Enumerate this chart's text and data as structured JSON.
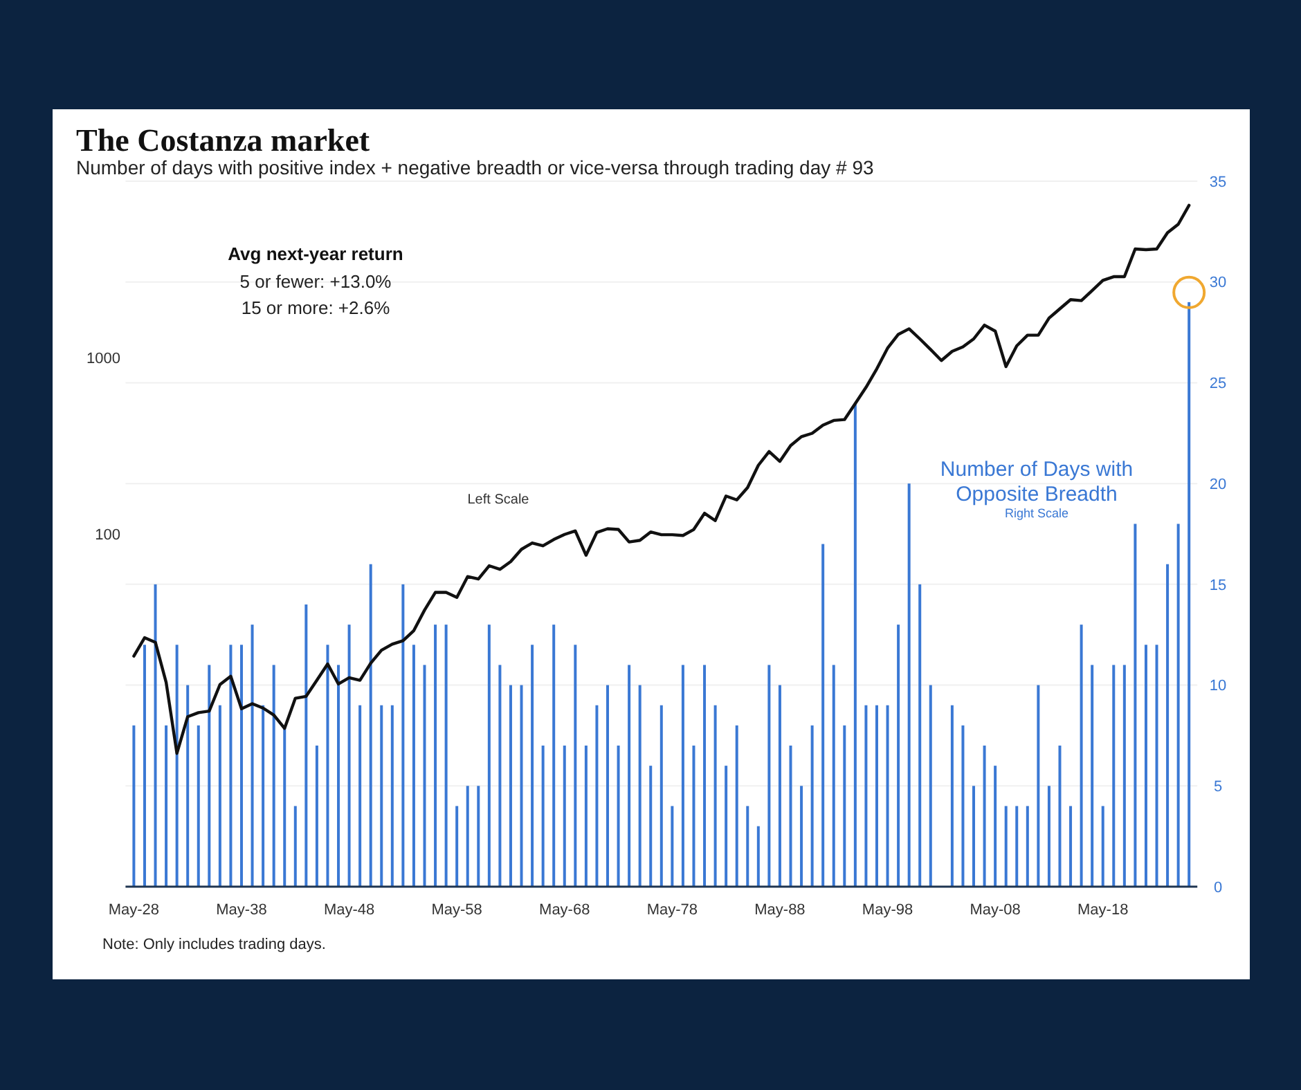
{
  "chart_data": {
    "type": "bar",
    "title": "The Costanza market",
    "subtitle": "Number of days with positive index + negative breadth or vice-versa through trading day # 93",
    "annotations": [
      "Avg next-year return",
      "5 or fewer: +13.0%",
      "15 or more: +2.6%",
      "Left Scale",
      "Right Scale",
      "Note: Only includes trading days."
    ],
    "categories": [
      "May-28",
      null,
      null,
      null,
      null,
      null,
      null,
      null,
      null,
      null,
      "May-38",
      null,
      null,
      null,
      null,
      null,
      null,
      null,
      null,
      null,
      "May-48",
      null,
      null,
      null,
      null,
      null,
      null,
      null,
      null,
      null,
      "May-58",
      null,
      null,
      null,
      null,
      null,
      null,
      null,
      null,
      null,
      "May-68",
      null,
      null,
      null,
      null,
      null,
      null,
      null,
      null,
      null,
      "May-78",
      null,
      null,
      null,
      null,
      null,
      null,
      null,
      null,
      null,
      "May-88",
      null,
      null,
      null,
      null,
      null,
      null,
      null,
      null,
      null,
      "May-98",
      null,
      null,
      null,
      null,
      null,
      null,
      null,
      null,
      null,
      "May-08",
      null,
      null,
      null,
      null,
      null,
      null,
      null,
      null,
      null,
      "May-18",
      null,
      null,
      null,
      null,
      null,
      null,
      null,
      null
    ],
    "series": [
      {
        "name": "Number of Days with Opposite Breadth",
        "axis": "y2",
        "color": "#3a78d4",
        "values": [
          8,
          12,
          15,
          8,
          12,
          10,
          8,
          11,
          9,
          12,
          12,
          13,
          9,
          11,
          8,
          4,
          14,
          7,
          12,
          11,
          13,
          9,
          16,
          9,
          9,
          15,
          12,
          11,
          13,
          13,
          4,
          5,
          5,
          13,
          11,
          10,
          10,
          12,
          7,
          13,
          7,
          12,
          7,
          9,
          10,
          7,
          11,
          10,
          6,
          9,
          4,
          11,
          7,
          11,
          9,
          6,
          8,
          4,
          3,
          11,
          10,
          7,
          5,
          8,
          17,
          11,
          8,
          24,
          9,
          9,
          9,
          13,
          20,
          15,
          10,
          0,
          9,
          8,
          5,
          7,
          6,
          4,
          4,
          4,
          10,
          5,
          7,
          4,
          13,
          11,
          4,
          11,
          11,
          18,
          12,
          12,
          16,
          18,
          29
        ]
      },
      {
        "type": "line",
        "axis": "y",
        "color": "#111111",
        "values": [
          20.3,
          25.8,
          24.3,
          14.4,
          5.7,
          9.2,
          9.7,
          9.9,
          14,
          15.6,
          10.2,
          10.9,
          10.3,
          9.4,
          7.9,
          11.7,
          12,
          14.8,
          18.3,
          14.1,
          15.3,
          14.8,
          18.5,
          21.9,
          23.7,
          24.8,
          28.3,
          37,
          46.6,
          46.6,
          43.7,
          57.3,
          55.5,
          66,
          63,
          69.7,
          81.8,
          88.9,
          85.6,
          93,
          99.3,
          104,
          75.7,
          102,
          107,
          106,
          90,
          92,
          102.6,
          99,
          99,
          98,
          106,
          131,
          119,
          164,
          156,
          183,
          245,
          293,
          258,
          317,
          356,
          372,
          414,
          440,
          445,
          549,
          678,
          863,
          1130,
          1354,
          1456,
          1276,
          1111,
          962,
          1085,
          1151,
          1276,
          1528,
          1413,
          889,
          1166,
          1340,
          1340,
          1674,
          1890,
          2130,
          2105,
          2400,
          2740,
          2875,
          2875,
          4130,
          4090,
          4130,
          5100,
          5700,
          7300
        ]
      }
    ],
    "log": true,
    "ylim": [
      1,
      10000
    ],
    "yticks": [
      100,
      1000
    ],
    "y2lim": [
      0,
      35
    ],
    "y2ticks": [
      0,
      5,
      10,
      15,
      20,
      25,
      30,
      35
    ],
    "grid": true
  }
}
